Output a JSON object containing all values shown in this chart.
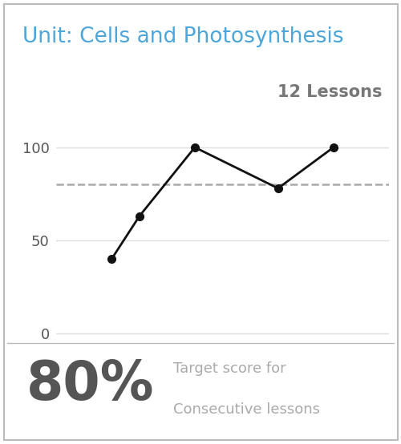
{
  "title": "Unit: Cells and Photosynthesis",
  "title_color": "#4da6d9",
  "lessons_label": "12 Lessons",
  "lessons_color": "#777777",
  "x_data": [
    2,
    3,
    5,
    8,
    10
  ],
  "y_data": [
    40,
    63,
    100,
    78,
    100
  ],
  "target_score": 80,
  "dashed_line_color": "#aaaaaa",
  "line_color": "#111111",
  "marker_color": "#111111",
  "yticks": [
    0,
    50,
    100
  ],
  "ylim": [
    -5,
    120
  ],
  "xlim": [
    0,
    12
  ],
  "header_bg_color": "#d4d4d4",
  "chart_bg_color": "#ffffff",
  "footer_bg_color": "#ffffff",
  "border_color": "#bbbbbb",
  "big_percent": "80%",
  "big_percent_color": "#555555",
  "footer_text_color": "#aaaaaa",
  "footer_bold_color": "#777777",
  "grid_color": "#dddddd",
  "tick_label_color": "#555555",
  "tick_fontsize": 13,
  "title_fontsize": 19,
  "lessons_fontsize": 15,
  "big_percent_fontsize": 48,
  "footer_fontsize": 13
}
